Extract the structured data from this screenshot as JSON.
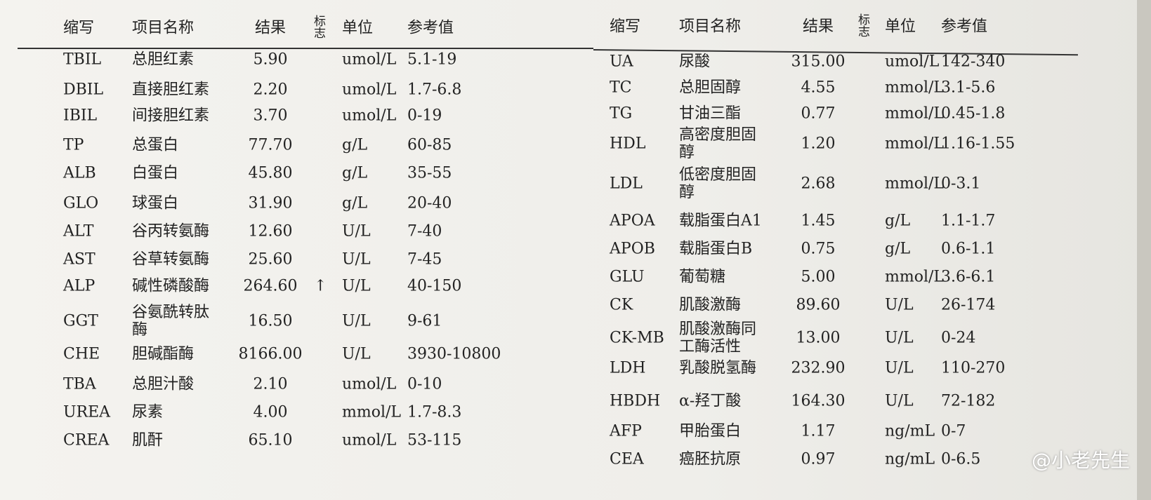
{
  "left_table": {
    "headers": {
      "abbr": "缩写",
      "name": "项目名称",
      "result": "结果",
      "flag": "标志",
      "unit": "单位",
      "ref": "参考值"
    },
    "rows": [
      {
        "abbr": "TBIL",
        "name": "总胆红素",
        "result": "5.90",
        "unit": "umol/L",
        "ref": "5.1-19"
      },
      {
        "abbr": "DBIL",
        "name": "直接胆红素",
        "result": "2.20",
        "unit": "umol/L",
        "ref": "1.7-6.8"
      },
      {
        "abbr": "IBIL",
        "name": "间接胆红素",
        "result": "3.70",
        "unit": "umol/L",
        "ref": "0-19"
      },
      {
        "abbr": "TP",
        "name": "总蛋白",
        "result": "77.70",
        "unit": "g/L",
        "ref": "60-85"
      },
      {
        "abbr": "ALB",
        "name": "白蛋白",
        "result": "45.80",
        "unit": "g/L",
        "ref": "35-55"
      },
      {
        "abbr": "GLO",
        "name": "球蛋白",
        "result": "31.90",
        "unit": "g/L",
        "ref": "20-40"
      },
      {
        "abbr": "ALT",
        "name": "谷丙转氨酶",
        "result": "12.60",
        "unit": "U/L",
        "ref": "7-40"
      },
      {
        "abbr": "AST",
        "name": "谷草转氨酶",
        "result": "25.60",
        "unit": "U/L",
        "ref": "7-45"
      },
      {
        "abbr": "ALP",
        "name": "碱性磷酸酶",
        "result": "264.60",
        "flag": "↑",
        "unit": "U/L",
        "ref": "40-150"
      },
      {
        "abbr": "GGT",
        "name": "谷氨酰转肽酶",
        "result": "16.50",
        "unit": "U/L",
        "ref": "9-61"
      },
      {
        "abbr": "CHE",
        "name": "胆碱酯酶",
        "result": "8166.00",
        "unit": "U/L",
        "ref": "3930-10800"
      },
      {
        "abbr": "TBA",
        "name": "总胆汁酸",
        "result": "2.10",
        "unit": "umol/L",
        "ref": "0-10"
      },
      {
        "abbr": "UREA",
        "name": "尿素",
        "result": "4.00",
        "unit": "mmol/L",
        "ref": "1.7-8.3"
      },
      {
        "abbr": "CREA",
        "name": "肌酐",
        "result": "65.10",
        "unit": "umol/L",
        "ref": "53-115"
      }
    ]
  },
  "right_table": {
    "headers": {
      "abbr": "缩写",
      "name": "项目名称",
      "result": "结果",
      "flag": "标志",
      "unit": "单位",
      "ref": "参考值"
    },
    "rows": [
      {
        "abbr": "UA",
        "name": "尿酸",
        "result": "315.00",
        "unit": "umol/L",
        "ref": "142-340"
      },
      {
        "abbr": "TC",
        "name": "总胆固醇",
        "result": "4.55",
        "unit": "mmol/L",
        "ref": "3.1-5.6"
      },
      {
        "abbr": "TG",
        "name": "甘油三酯",
        "result": "0.77",
        "unit": "mmol/L",
        "ref": "0.45-1.8"
      },
      {
        "abbr": "HDL",
        "name": "高密度胆固醇",
        "result": "1.20",
        "unit": "mmol/L",
        "ref": "1.16-1.55"
      },
      {
        "abbr": "LDL",
        "name": "低密度胆固醇",
        "result": "2.68",
        "unit": "mmol/L",
        "ref": "0-3.1"
      },
      {
        "abbr": "APOA",
        "name": "载脂蛋白A1",
        "result": "1.45",
        "unit": "g/L",
        "ref": "1.1-1.7"
      },
      {
        "abbr": "APOB",
        "name": "载脂蛋白B",
        "result": "0.75",
        "unit": "g/L",
        "ref": "0.6-1.1"
      },
      {
        "abbr": "GLU",
        "name": "葡萄糖",
        "result": "5.00",
        "unit": "mmol/L",
        "ref": "3.6-6.1"
      },
      {
        "abbr": "CK",
        "name": "肌酸激酶",
        "result": "89.60",
        "unit": "U/L",
        "ref": "26-174"
      },
      {
        "abbr": "CK-MB",
        "name": "肌酸激酶同工酶活性",
        "result": "13.00",
        "unit": "U/L",
        "ref": "0-24"
      },
      {
        "abbr": "LDH",
        "name": "乳酸脱氢酶",
        "result": "232.90",
        "unit": "U/L",
        "ref": "110-270"
      },
      {
        "abbr": "HBDH",
        "name": "α-羟丁酸",
        "result": "164.30",
        "unit": "U/L",
        "ref": "72-182"
      },
      {
        "abbr": "AFP",
        "name": "甲胎蛋白",
        "result": "1.17",
        "unit": "ng/mL",
        "ref": "0-7"
      },
      {
        "abbr": "CEA",
        "name": "癌胚抗原",
        "result": "0.97",
        "unit": "ng/mL",
        "ref": "0-6.5"
      }
    ]
  },
  "watermark": "@小老先生"
}
